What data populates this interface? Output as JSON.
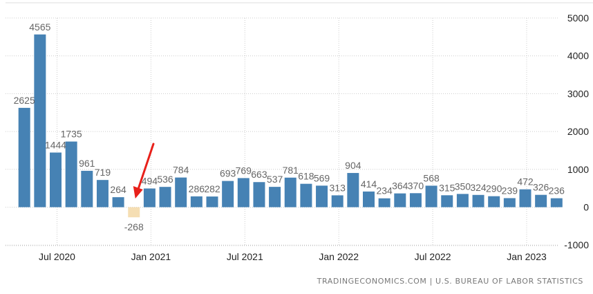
{
  "chart_data": {
    "type": "bar",
    "title": "",
    "xlabel": "",
    "ylabel": "",
    "ylim": [
      -1000,
      5000
    ],
    "yticks": [
      "5000",
      "4000",
      "3000",
      "2000",
      "1000",
      "0",
      "-1000"
    ],
    "xticks": [
      "Jul 2020",
      "Jan 2021",
      "Jul 2021",
      "Jan 2022",
      "Jul 2022",
      "Jan 2023"
    ],
    "grid": true,
    "y_axis_side": "right",
    "categories": [
      "May 2020",
      "Jun 2020",
      "Jul 2020",
      "Aug 2020",
      "Sep 2020",
      "Oct 2020",
      "Nov 2020",
      "Dec 2020",
      "Jan 2021",
      "Feb 2021",
      "Mar 2021",
      "Apr 2021",
      "May 2021",
      "Jun 2021",
      "Jul 2021",
      "Aug 2021",
      "Sep 2021",
      "Oct 2021",
      "Nov 2021",
      "Dec 2021",
      "Jan 2022",
      "Feb 2022",
      "Mar 2022",
      "Apr 2022",
      "May 2022",
      "Jun 2022",
      "Jul 2022",
      "Aug 2022",
      "Sep 2022",
      "Oct 2022",
      "Nov 2022",
      "Dec 2022",
      "Jan 2023",
      "Feb 2023",
      "Mar 2023"
    ],
    "values": [
      2625,
      4565,
      1444,
      1735,
      961,
      719,
      264,
      -268,
      494,
      536,
      784,
      286,
      282,
      693,
      769,
      663,
      537,
      781,
      618,
      569,
      313,
      904,
      414,
      234,
      364,
      370,
      568,
      315,
      350,
      324,
      290,
      239,
      472,
      326,
      236
    ],
    "labels": [
      "2625",
      "4565",
      "1444",
      "1735",
      "961",
      "719",
      "264",
      "-268",
      "494",
      "536",
      "784",
      "286",
      "282",
      "693",
      "769",
      "663",
      "537",
      "781",
      "618",
      "569",
      "313",
      "904",
      "414",
      "234",
      "364",
      "370",
      "568",
      "315",
      "350",
      "324",
      "290",
      "239",
      "472",
      "326",
      "236"
    ],
    "highlight_index": 7,
    "colors": {
      "bar": "#4682b4",
      "highlight": "#f5deb3",
      "label": "#666666",
      "grid": "#cccccc",
      "arrow": "#e8201a"
    },
    "annotation": {
      "type": "arrow",
      "points_to": "Dec 2020",
      "color": "#e8201a"
    }
  },
  "footer": {
    "source": "TRADINGECONOMICS.COM | U.S. BUREAU OF LABOR STATISTICS"
  }
}
